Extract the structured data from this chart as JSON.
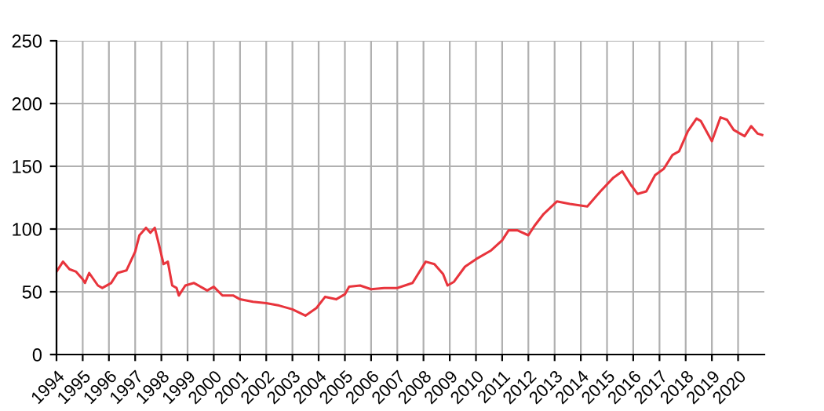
{
  "chart_data": {
    "type": "line",
    "x": [
      "1994-01",
      "1994-04",
      "1994-07",
      "1994-10",
      "1995-01",
      "1995-02",
      "1995-04",
      "1995-08",
      "1995-10",
      "1996-02",
      "1996-05",
      "1996-09",
      "1997-01",
      "1997-03",
      "1997-06",
      "1997-08",
      "1997-10",
      "1997-12",
      "1998-02",
      "1998-04",
      "1998-06",
      "1998-08",
      "1998-09",
      "1998-12",
      "1999-04",
      "1999-08",
      "1999-10",
      "2000-01",
      "2000-05",
      "2000-10",
      "2001-01",
      "2001-07",
      "2002-01",
      "2002-07",
      "2003-01",
      "2003-07",
      "2003-12",
      "2004-04",
      "2004-09",
      "2005-01",
      "2005-03",
      "2005-08",
      "2006-01",
      "2006-07",
      "2007-01",
      "2007-08",
      "2008-02",
      "2008-06",
      "2008-10",
      "2008-12",
      "2009-03",
      "2009-08",
      "2010-01",
      "2010-08",
      "2011-01",
      "2011-04",
      "2011-08",
      "2012-01",
      "2012-04",
      "2012-08",
      "2013-02",
      "2013-08",
      "2014-04",
      "2014-10",
      "2015-04",
      "2015-08",
      "2015-12",
      "2016-03",
      "2016-07",
      "2016-11",
      "2017-03",
      "2017-07",
      "2017-10",
      "2018-02",
      "2018-06",
      "2018-08",
      "2019-01",
      "2019-05",
      "2019-08",
      "2019-11",
      "2020-04",
      "2020-07",
      "2020-10",
      "2020-12"
    ],
    "series": [
      {
        "color": "#e8343c",
        "values": [
          66,
          74,
          68,
          66,
          60,
          57,
          65,
          55,
          53,
          57,
          65,
          67,
          82,
          95,
          101,
          97,
          101,
          87,
          72,
          74,
          55,
          53,
          47,
          55,
          57,
          53,
          51,
          54,
          47,
          47,
          44,
          42,
          41,
          39,
          36,
          31,
          37,
          46,
          44,
          48,
          54,
          55,
          52,
          53,
          53,
          57,
          74,
          72,
          64,
          55,
          58,
          70,
          76,
          83,
          91,
          99,
          99,
          95,
          103,
          112,
          122,
          120,
          118,
          130,
          141,
          146,
          135,
          128,
          130,
          143,
          148,
          159,
          162,
          178,
          188,
          186,
          170,
          189,
          187,
          179,
          174,
          182,
          176,
          175
        ]
      }
    ],
    "xlim": [
      "1994-01-01",
      "2021-01-01"
    ],
    "xticks": [
      "1994",
      "1995",
      "1996",
      "1997",
      "1998",
      "1999",
      "2000",
      "2001",
      "2002",
      "2003",
      "2004",
      "2005",
      "2006",
      "2007",
      "2008",
      "2009",
      "2010",
      "2011",
      "2012",
      "2013",
      "2014",
      "2015",
      "2016",
      "2017",
      "2018",
      "2019",
      "2020"
    ],
    "ylim": [
      0,
      250
    ],
    "yticks": [
      0,
      50,
      100,
      150,
      200,
      250
    ],
    "grid": true
  }
}
